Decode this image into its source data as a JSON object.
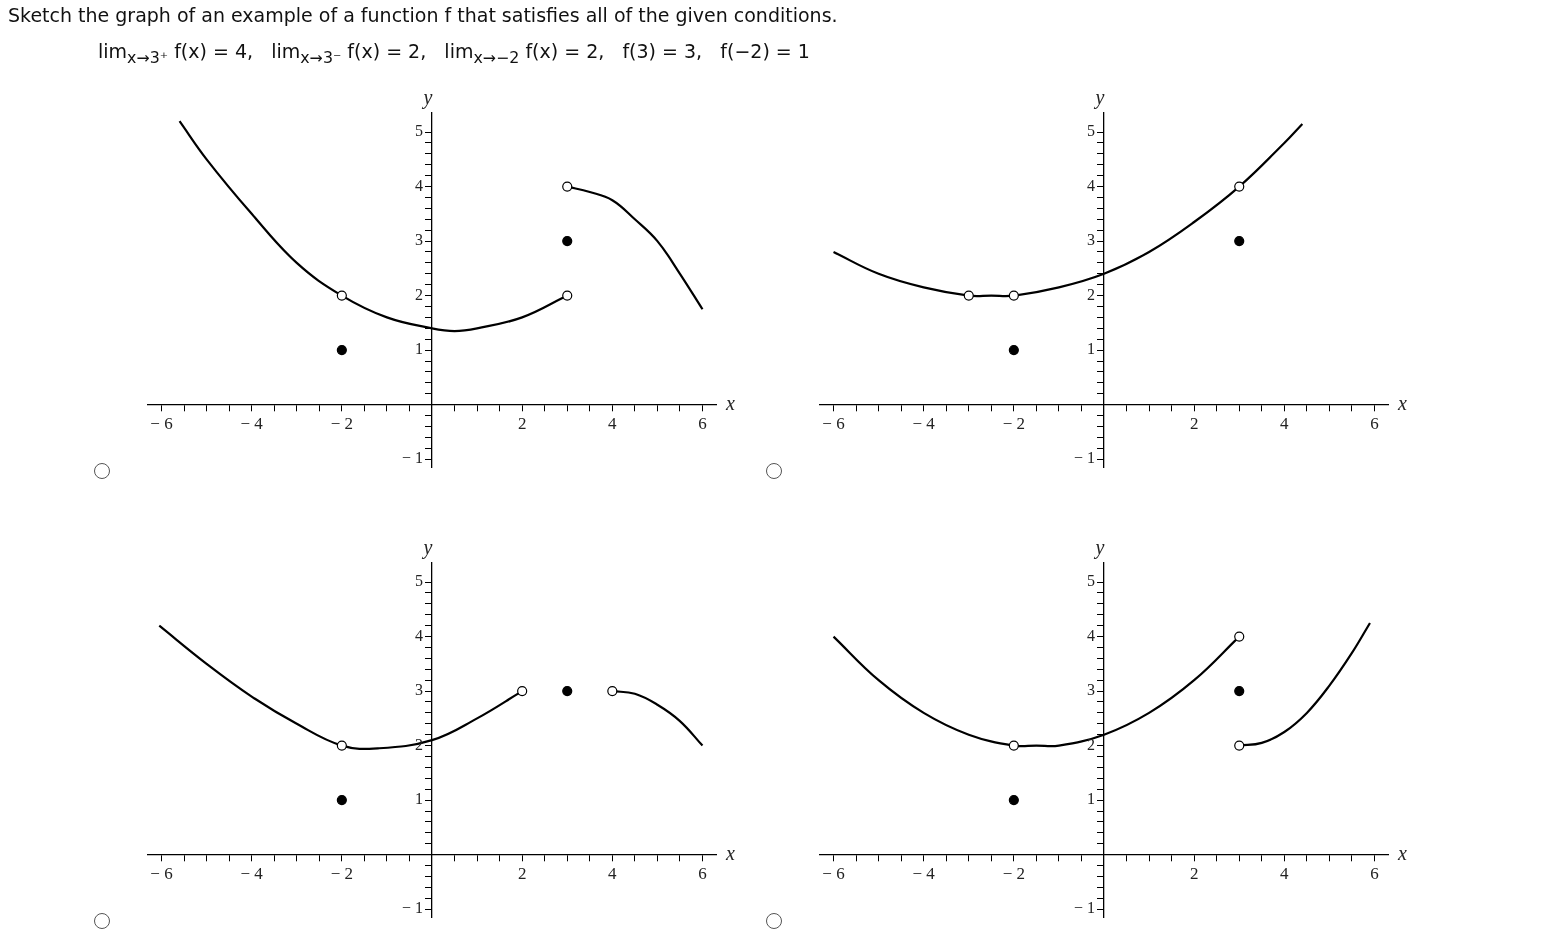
{
  "chart_data": [
    {
      "type": "line",
      "title": "Sketch the graph of an example of a function f that satisfies all of the given conditions.",
      "subtitle": "lim$_{x→3⁺}$ f(x) = 4,   lim$_{x→3⁻}$ f(x) = 2,   lim$_{x→−2}$ f(x) = 2,   f(3) = 3,   f(−2) = 1",
      "xlabel": "x",
      "ylabel": "y",
      "xlim": [
        -6.3,
        6.3
      ],
      "ylim": [
        -1.15,
        5.35
      ],
      "xticks": [
        -6,
        {
          "value": -5.5,
          "label": null
        },
        {
          "value": -5,
          "label": null
        },
        {
          "value": -4.5,
          "label": null
        },
        -4,
        {
          "value": -3.5,
          "label": null
        },
        {
          "value": -3,
          "label": null
        },
        {
          "value": -2.5,
          "label": null
        },
        -2,
        {
          "value": -1.5,
          "label": null
        },
        {
          "value": -1,
          "label": null
        },
        {
          "value": -0.5,
          "label": null
        },
        {
          "value": 0.5,
          "label": null
        },
        {
          "value": 1,
          "label": null
        },
        {
          "value": 1.5,
          "label": null
        },
        2,
        {
          "value": 2.5,
          "label": null
        },
        {
          "value": 3,
          "label": null
        },
        {
          "value": 3.5,
          "label": null
        },
        4,
        {
          "value": 4.5,
          "label": null
        },
        {
          "value": 5,
          "label": null
        },
        {
          "value": 5.5,
          "label": null
        },
        6
      ],
      "yticks": [
        -1,
        {
          "value": -0.8,
          "label": null
        },
        {
          "value": -0.6,
          "label": null
        },
        {
          "value": -0.4,
          "label": null
        },
        {
          "value": -0.2,
          "label": null
        },
        {
          "value": 0.2,
          "label": null
        },
        {
          "value": 0.4,
          "label": null
        },
        {
          "value": 0.6,
          "label": null
        },
        {
          "value": 0.8,
          "label": null
        },
        1,
        {
          "value": 1.2,
          "label": null
        },
        {
          "value": 1.4,
          "label": null
        },
        {
          "value": 1.6,
          "label": null
        },
        {
          "value": 1.8,
          "label": null
        },
        2,
        {
          "value": 2.2,
          "label": null
        },
        {
          "value": 2.4,
          "label": null
        },
        {
          "value": 2.6,
          "label": null
        },
        {
          "value": 2.8,
          "label": null
        },
        3,
        {
          "value": 3.2,
          "label": null
        },
        {
          "value": 3.4,
          "label": null
        },
        {
          "value": 3.6,
          "label": null
        },
        {
          "value": 3.8,
          "label": null
        },
        4,
        {
          "value": 4.2,
          "label": null
        },
        {
          "value": 4.4,
          "label": null
        },
        {
          "value": 4.6,
          "label": null
        },
        {
          "value": 4.8,
          "label": null
        },
        5
      ],
      "series": [
        {
          "type": "line",
          "marker": "none",
          "color": "#000000",
          "x": [
            -5.6,
            -5,
            -4,
            -3,
            -2,
            -1,
            0,
            0.5,
            1,
            2,
            3
          ],
          "values": [
            5.2,
            4.5,
            3.5,
            2.6,
            2,
            1.6,
            1.4,
            1.35,
            1.4,
            1.6,
            2
          ]
        },
        {
          "type": "line",
          "marker": "none",
          "color": "#000000",
          "x": [
            3,
            3.5,
            4,
            4.5,
            5,
            5.5,
            6
          ],
          "values": [
            4,
            3.9,
            3.75,
            3.4,
            3,
            2.4,
            1.75
          ]
        },
        {
          "type": "scatter",
          "marker": "circle",
          "color": "#ffffff",
          "x": [
            -2,
            3,
            3
          ],
          "values": [
            2,
            2,
            4
          ]
        },
        {
          "type": "scatter",
          "marker": "circle",
          "color": "#000000",
          "x": [
            -2,
            3
          ],
          "values": [
            1,
            3
          ]
        }
      ]
    },
    {
      "type": "line",
      "xlabel": "x",
      "ylabel": "y",
      "xlim": [
        -6.3,
        6.3
      ],
      "ylim": [
        -1.15,
        5.35
      ],
      "xticks": [
        -6,
        {
          "value": -5.5,
          "label": null
        },
        {
          "value": -5,
          "label": null
        },
        {
          "value": -4.5,
          "label": null
        },
        -4,
        {
          "value": -3.5,
          "label": null
        },
        {
          "value": -3,
          "label": null
        },
        {
          "value": -2.5,
          "label": null
        },
        -2,
        {
          "value": -1.5,
          "label": null
        },
        {
          "value": -1,
          "label": null
        },
        {
          "value": -0.5,
          "label": null
        },
        {
          "value": 0.5,
          "label": null
        },
        {
          "value": 1,
          "label": null
        },
        {
          "value": 1.5,
          "label": null
        },
        2,
        {
          "value": 2.5,
          "label": null
        },
        {
          "value": 3,
          "label": null
        },
        {
          "value": 3.5,
          "label": null
        },
        4,
        {
          "value": 4.5,
          "label": null
        },
        {
          "value": 5,
          "label": null
        },
        {
          "value": 5.5,
          "label": null
        },
        6
      ],
      "yticks": [
        -1,
        {
          "value": -0.8,
          "label": null
        },
        {
          "value": -0.6,
          "label": null
        },
        {
          "value": -0.4,
          "label": null
        },
        {
          "value": -0.2,
          "label": null
        },
        {
          "value": 0.2,
          "label": null
        },
        {
          "value": 0.4,
          "label": null
        },
        {
          "value": 0.6,
          "label": null
        },
        {
          "value": 0.8,
          "label": null
        },
        1,
        {
          "value": 1.2,
          "label": null
        },
        {
          "value": 1.4,
          "label": null
        },
        {
          "value": 1.6,
          "label": null
        },
        {
          "value": 1.8,
          "label": null
        },
        2,
        {
          "value": 2.2,
          "label": null
        },
        {
          "value": 2.4,
          "label": null
        },
        {
          "value": 2.6,
          "label": null
        },
        {
          "value": 2.8,
          "label": null
        },
        3,
        {
          "value": 3.2,
          "label": null
        },
        {
          "value": 3.4,
          "label": null
        },
        {
          "value": 3.6,
          "label": null
        },
        {
          "value": 3.8,
          "label": null
        },
        4,
        {
          "value": 4.2,
          "label": null
        },
        {
          "value": 4.4,
          "label": null
        },
        {
          "value": 4.6,
          "label": null
        },
        {
          "value": 4.8,
          "label": null
        },
        5
      ],
      "series": [
        {
          "type": "line",
          "marker": "none",
          "color": "#000000",
          "x": [
            -6,
            -5,
            -4,
            -3,
            -2.5,
            -2,
            -1,
            0,
            1,
            2,
            3,
            4,
            4.4
          ],
          "values": [
            2.8,
            2.4,
            2.15,
            2,
            2,
            2,
            2.15,
            2.4,
            2.8,
            3.35,
            4,
            4.8,
            5.15
          ]
        },
        {
          "type": "scatter",
          "marker": "circle",
          "color": "#ffffff",
          "x": [
            -3,
            -2,
            3
          ],
          "values": [
            2,
            2,
            4
          ]
        },
        {
          "type": "scatter",
          "marker": "circle",
          "color": "#000000",
          "x": [
            -2,
            3
          ],
          "values": [
            1,
            3
          ]
        }
      ]
    },
    {
      "type": "line",
      "xlabel": "x",
      "ylabel": "y",
      "xlim": [
        -6.3,
        6.3
      ],
      "ylim": [
        -1.15,
        5.35
      ],
      "xticks": [
        -6,
        {
          "value": -5.5,
          "label": null
        },
        {
          "value": -5,
          "label": null
        },
        {
          "value": -4.5,
          "label": null
        },
        -4,
        {
          "value": -3.5,
          "label": null
        },
        {
          "value": -3,
          "label": null
        },
        {
          "value": -2.5,
          "label": null
        },
        -2,
        {
          "value": -1.5,
          "label": null
        },
        {
          "value": -1,
          "label": null
        },
        {
          "value": -0.5,
          "label": null
        },
        {
          "value": 0.5,
          "label": null
        },
        {
          "value": 1,
          "label": null
        },
        {
          "value": 1.5,
          "label": null
        },
        2,
        {
          "value": 2.5,
          "label": null
        },
        {
          "value": 3,
          "label": null
        },
        {
          "value": 3.5,
          "label": null
        },
        4,
        {
          "value": 4.5,
          "label": null
        },
        {
          "value": 5,
          "label": null
        },
        {
          "value": 5.5,
          "label": null
        },
        6
      ],
      "yticks": [
        -1,
        {
          "value": -0.8,
          "label": null
        },
        {
          "value": -0.6,
          "label": null
        },
        {
          "value": -0.4,
          "label": null
        },
        {
          "value": -0.2,
          "label": null
        },
        {
          "value": 0.2,
          "label": null
        },
        {
          "value": 0.4,
          "label": null
        },
        {
          "value": 0.6,
          "label": null
        },
        {
          "value": 0.8,
          "label": null
        },
        1,
        {
          "value": 1.2,
          "label": null
        },
        {
          "value": 1.4,
          "label": null
        },
        {
          "value": 1.6,
          "label": null
        },
        {
          "value": 1.8,
          "label": null
        },
        2,
        {
          "value": 2.2,
          "label": null
        },
        {
          "value": 2.4,
          "label": null
        },
        {
          "value": 2.6,
          "label": null
        },
        {
          "value": 2.8,
          "label": null
        },
        3,
        {
          "value": 3.2,
          "label": null
        },
        {
          "value": 3.4,
          "label": null
        },
        {
          "value": 3.6,
          "label": null
        },
        {
          "value": 3.8,
          "label": null
        },
        4,
        {
          "value": 4.2,
          "label": null
        },
        {
          "value": 4.4,
          "label": null
        },
        {
          "value": 4.6,
          "label": null
        },
        {
          "value": 4.8,
          "label": null
        },
        5
      ],
      "series": [
        {
          "type": "line",
          "marker": "none",
          "color": "#000000",
          "x": [
            -6.05,
            -5,
            -4,
            -3,
            -2,
            -1.2,
            0,
            1,
            2
          ],
          "values": [
            4.2,
            3.5,
            2.9,
            2.4,
            2,
            1.95,
            2.1,
            2.5,
            3
          ]
        },
        {
          "type": "line",
          "marker": "none",
          "color": "#000000",
          "x": [
            4,
            4.5,
            5,
            5.5,
            6
          ],
          "values": [
            3,
            2.95,
            2.75,
            2.45,
            2
          ]
        },
        {
          "type": "scatter",
          "marker": "circle",
          "color": "#ffffff",
          "x": [
            -2,
            2,
            4
          ],
          "values": [
            2,
            3,
            3
          ]
        },
        {
          "type": "scatter",
          "marker": "circle",
          "color": "#000000",
          "x": [
            -2,
            3
          ],
          "values": [
            1,
            3
          ]
        }
      ]
    },
    {
      "type": "line",
      "xlabel": "x",
      "ylabel": "y",
      "xlim": [
        -6.3,
        6.3
      ],
      "ylim": [
        -1.15,
        5.35
      ],
      "xticks": [
        -6,
        {
          "value": -5.5,
          "label": null
        },
        {
          "value": -5,
          "label": null
        },
        {
          "value": -4.5,
          "label": null
        },
        -4,
        {
          "value": -3.5,
          "label": null
        },
        {
          "value": -3,
          "label": null
        },
        {
          "value": -2.5,
          "label": null
        },
        -2,
        {
          "value": -1.5,
          "label": null
        },
        {
          "value": -1,
          "label": null
        },
        {
          "value": -0.5,
          "label": null
        },
        {
          "value": 0.5,
          "label": null
        },
        {
          "value": 1,
          "label": null
        },
        {
          "value": 1.5,
          "label": null
        },
        2,
        {
          "value": 2.5,
          "label": null
        },
        {
          "value": 3,
          "label": null
        },
        {
          "value": 3.5,
          "label": null
        },
        4,
        {
          "value": 4.5,
          "label": null
        },
        {
          "value": 5,
          "label": null
        },
        {
          "value": 5.5,
          "label": null
        },
        6
      ],
      "yticks": [
        -1,
        {
          "value": -0.8,
          "label": null
        },
        {
          "value": -0.6,
          "label": null
        },
        {
          "value": -0.4,
          "label": null
        },
        {
          "value": -0.2,
          "label": null
        },
        {
          "value": 0.2,
          "label": null
        },
        {
          "value": 0.4,
          "label": null
        },
        {
          "value": 0.6,
          "label": null
        },
        {
          "value": 0.8,
          "label": null
        },
        1,
        {
          "value": 1.2,
          "label": null
        },
        {
          "value": 1.4,
          "label": null
        },
        {
          "value": 1.6,
          "label": null
        },
        {
          "value": 1.8,
          "label": null
        },
        2,
        {
          "value": 2.2,
          "label": null
        },
        {
          "value": 2.4,
          "label": null
        },
        {
          "value": 2.6,
          "label": null
        },
        {
          "value": 2.8,
          "label": null
        },
        3,
        {
          "value": 3.2,
          "label": null
        },
        {
          "value": 3.4,
          "label": null
        },
        {
          "value": 3.6,
          "label": null
        },
        {
          "value": 3.8,
          "label": null
        },
        4,
        {
          "value": 4.2,
          "label": null
        },
        {
          "value": 4.4,
          "label": null
        },
        {
          "value": 4.6,
          "label": null
        },
        {
          "value": 4.8,
          "label": null
        },
        5
      ],
      "series": [
        {
          "type": "line",
          "marker": "none",
          "color": "#000000",
          "x": [
            -6,
            -5,
            -4,
            -3,
            -2,
            -1.5,
            -1,
            0,
            1,
            2,
            3
          ],
          "values": [
            4,
            3.2,
            2.6,
            2.2,
            2,
            2,
            2,
            2.2,
            2.6,
            3.2,
            4
          ]
        },
        {
          "type": "line",
          "marker": "none",
          "color": "#000000",
          "x": [
            3,
            3.5,
            4,
            4.5,
            5,
            5.5,
            5.9
          ],
          "values": [
            2,
            2.05,
            2.25,
            2.6,
            3.1,
            3.7,
            4.25
          ]
        },
        {
          "type": "scatter",
          "marker": "circle",
          "color": "#ffffff",
          "x": [
            -2,
            3,
            3
          ],
          "values": [
            2,
            4,
            2
          ]
        },
        {
          "type": "scatter",
          "marker": "circle",
          "color": "#000000",
          "x": [
            -2,
            3
          ],
          "values": [
            1,
            3
          ]
        }
      ]
    }
  ]
}
